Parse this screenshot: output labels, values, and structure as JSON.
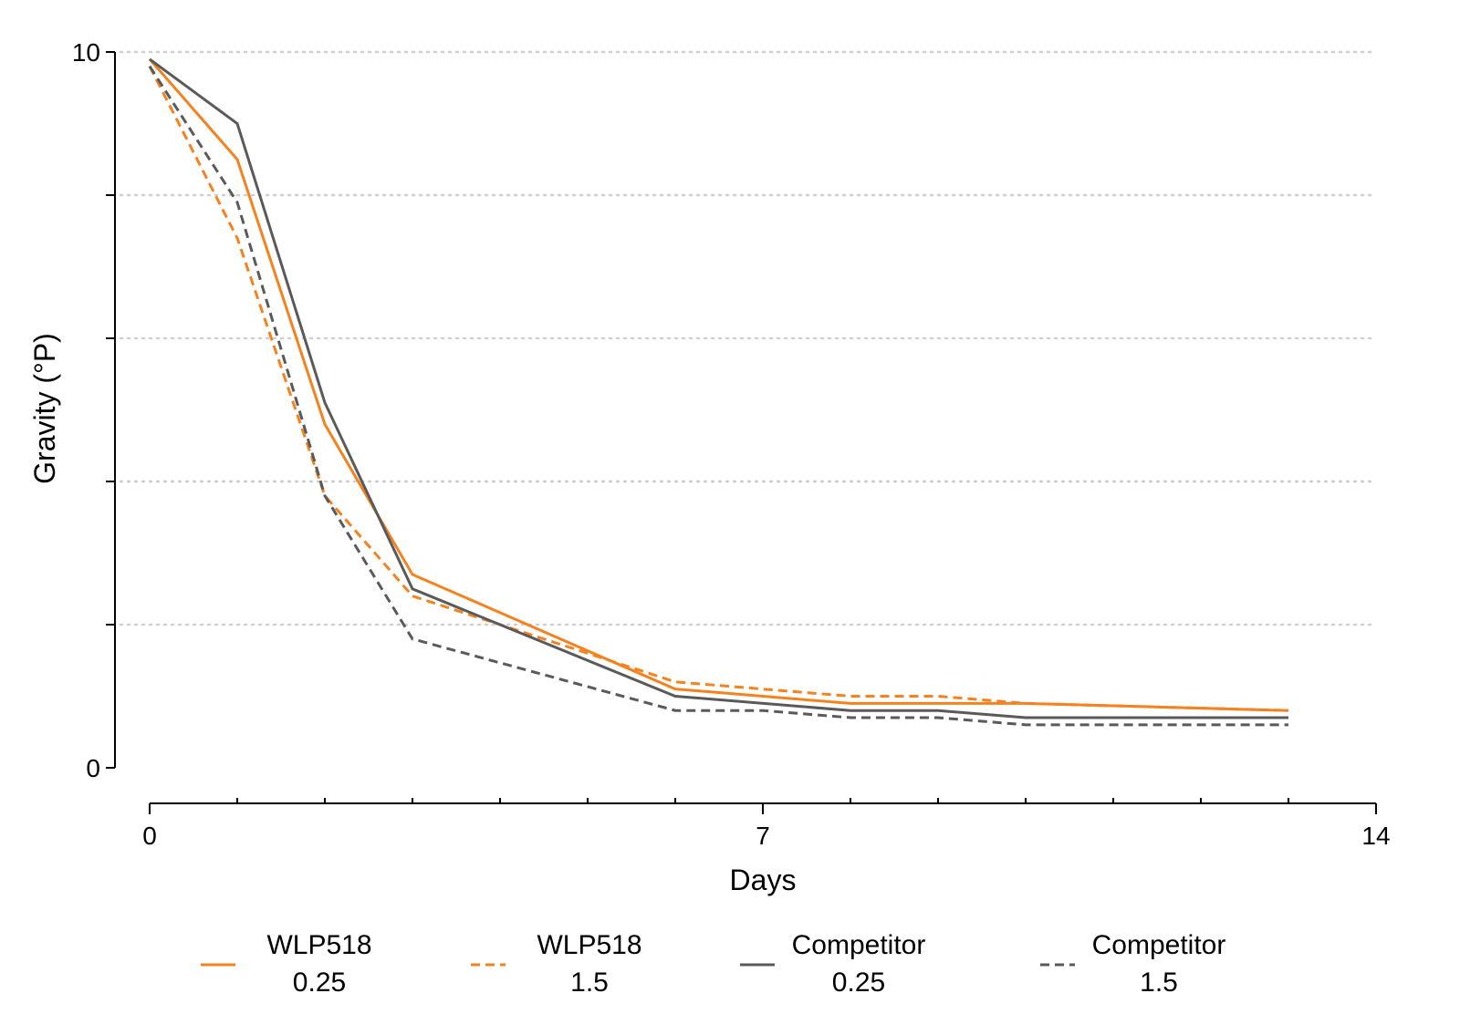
{
  "chart_data": {
    "type": "line",
    "xlabel": "Days",
    "ylabel": "Gravity (°P)",
    "xlim": [
      0,
      14
    ],
    "ylim": [
      0,
      10
    ],
    "x_ticks": [
      0,
      7,
      14
    ],
    "x_minor_step": 1,
    "y_ticks": [
      0,
      10
    ],
    "y_gridlines": [
      2,
      4,
      6,
      8,
      10
    ],
    "grid": "horizontal dotted",
    "legend": "bottom",
    "series": [
      {
        "name": "WLP518",
        "name2": "0.25",
        "color": "#f5821f",
        "dash": "solid",
        "x": [
          0,
          1,
          2,
          3,
          6,
          8,
          10,
          13
        ],
        "y": [
          9.9,
          8.5,
          4.8,
          2.7,
          1.1,
          0.9,
          0.9,
          0.8
        ]
      },
      {
        "name": "WLP518",
        "name2": "1.5",
        "color": "#f5821f",
        "dash": "dashed",
        "x": [
          0,
          1,
          2,
          3,
          6,
          8,
          9,
          10,
          13
        ],
        "y": [
          9.8,
          7.4,
          3.8,
          2.4,
          1.2,
          1.0,
          1.0,
          0.9,
          0.8
        ]
      },
      {
        "name": "Competitor",
        "name2": "0.25",
        "color": "#5a5a5a",
        "dash": "solid",
        "x": [
          0,
          1,
          2,
          3,
          6,
          8,
          9,
          10,
          13
        ],
        "y": [
          9.9,
          9.0,
          5.1,
          2.5,
          1.0,
          0.8,
          0.8,
          0.7,
          0.7
        ]
      },
      {
        "name": "Competitor",
        "name2": "1.5",
        "color": "#5a5a5a",
        "dash": "dashed",
        "x": [
          0,
          1,
          2,
          3,
          6,
          7,
          8,
          9,
          10,
          13
        ],
        "y": [
          9.8,
          7.9,
          3.8,
          1.8,
          0.8,
          0.8,
          0.7,
          0.7,
          0.6,
          0.6
        ]
      }
    ]
  }
}
